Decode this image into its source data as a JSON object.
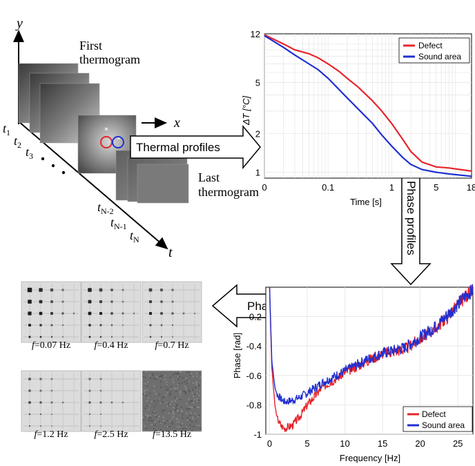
{
  "schematic": {
    "axis_y": "y",
    "axis_x": "x",
    "axis_t": "t",
    "first_label_line1": "First",
    "first_label_line2": "thermogram",
    "last_label_line1": "Last",
    "last_label_line2": "thermogram",
    "t1": "t",
    "t1_sub": "1",
    "t2": "t",
    "t2_sub": "2",
    "t3": "t",
    "t3_sub": "3",
    "tn2": "t",
    "tn2_sub": "N-2",
    "tn1": "t",
    "tn1_sub": "N-1",
    "tn": "t",
    "tn_sub": "N",
    "defect_color": "#e8232a",
    "sound_color": "#1f2fd1"
  },
  "arrows": {
    "thermal_profiles": "Thermal profiles",
    "phase_profiles": "Phase profiles",
    "phasegrams": "Phasegrams"
  },
  "thumbnails": [
    {
      "f_label": "f",
      "value": "=0.07 Hz",
      "level": 0.9
    },
    {
      "f_label": "f",
      "value": "=0.4 Hz",
      "level": 0.75
    },
    {
      "f_label": "f",
      "value": "=0.7 Hz",
      "level": 0.6
    },
    {
      "f_label": "f",
      "value": "=1.2 Hz",
      "level": 0.45
    },
    {
      "f_label": "f",
      "value": "=2.5 Hz",
      "level": 0.35
    },
    {
      "f_label": "f",
      "value": "=13.5 Hz",
      "level": 0.0
    }
  ],
  "chart_data": [
    {
      "type": "line",
      "xlabel": "Time [s]",
      "ylabel": "ΔT [°C]",
      "xscale": "log",
      "yscale": "log",
      "xlim": [
        0.01,
        18
      ],
      "ylim": [
        0.9,
        12
      ],
      "x_ticks": [
        "0",
        "0.1",
        "1",
        "5",
        "18"
      ],
      "x_tick_values": [
        0.01,
        0.1,
        1,
        5,
        18
      ],
      "y_ticks": [
        "12",
        "5",
        "2",
        "1"
      ],
      "y_tick_values": [
        12,
        5,
        2,
        1
      ],
      "grid": true,
      "legend": "top-right",
      "series": [
        {
          "name": "Defect",
          "color": "#e8232a",
          "x": [
            0.01,
            0.02,
            0.03,
            0.05,
            0.07,
            0.1,
            0.15,
            0.2,
            0.3,
            0.5,
            0.7,
            1,
            1.5,
            2,
            3,
            5,
            8,
            12,
            18
          ],
          "y": [
            11.8,
            10.0,
            9.0,
            8.4,
            7.8,
            7.0,
            6.1,
            5.4,
            4.6,
            3.6,
            3.0,
            2.4,
            1.8,
            1.45,
            1.2,
            1.1,
            1.08,
            1.05,
            1.02
          ]
        },
        {
          "name": "Sound area",
          "color": "#1f2fd1",
          "x": [
            0.01,
            0.02,
            0.03,
            0.05,
            0.07,
            0.1,
            0.15,
            0.2,
            0.3,
            0.5,
            0.7,
            1,
            1.5,
            2,
            3,
            5,
            8,
            12,
            18
          ],
          "y": [
            11.6,
            9.4,
            8.2,
            7.0,
            6.3,
            5.4,
            4.4,
            3.8,
            3.1,
            2.4,
            1.95,
            1.6,
            1.3,
            1.15,
            1.05,
            1.0,
            0.97,
            0.95,
            0.93
          ]
        }
      ]
    },
    {
      "type": "line",
      "xlabel": "Frequency [Hz]",
      "ylabel": "Phase [rad]",
      "xlim": [
        -0.5,
        27
      ],
      "ylim": [
        -1,
        0
      ],
      "x_ticks": [
        "0",
        "5",
        "10",
        "15",
        "20",
        "25"
      ],
      "x_tick_values": [
        0,
        5,
        10,
        15,
        20,
        25
      ],
      "y_ticks": [
        "-0.2",
        "-0.4",
        "-0.6",
        "-0.8",
        "-1"
      ],
      "y_tick_values": [
        -0.2,
        -0.4,
        -0.6,
        -0.8,
        -1
      ],
      "grid": true,
      "legend": "bottom-right",
      "series": [
        {
          "name": "Defect",
          "color": "#e8232a",
          "x": [
            0,
            0.3,
            0.7,
            1,
            1.5,
            2,
            3,
            4,
            5,
            7,
            10,
            13,
            15,
            18,
            20,
            22,
            24,
            26,
            27
          ],
          "y": [
            0.0,
            -0.55,
            -0.8,
            -0.89,
            -0.94,
            -0.96,
            -0.94,
            -0.88,
            -0.8,
            -0.68,
            -0.58,
            -0.5,
            -0.45,
            -0.42,
            -0.35,
            -0.28,
            -0.18,
            -0.06,
            -0.02
          ]
        },
        {
          "name": "Sound area",
          "color": "#1f2fd1",
          "x": [
            0,
            0.3,
            0.7,
            1,
            1.5,
            2,
            3,
            4,
            5,
            7,
            10,
            13,
            15,
            18,
            20,
            22,
            24,
            26,
            27
          ],
          "y": [
            0.0,
            -0.5,
            -0.68,
            -0.73,
            -0.76,
            -0.78,
            -0.77,
            -0.75,
            -0.72,
            -0.65,
            -0.57,
            -0.49,
            -0.45,
            -0.41,
            -0.34,
            -0.27,
            -0.17,
            -0.06,
            -0.02
          ]
        }
      ]
    }
  ]
}
